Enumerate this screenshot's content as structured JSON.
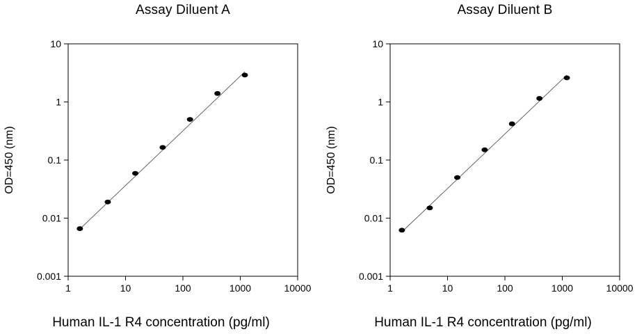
{
  "chart_data": [
    {
      "type": "scatter",
      "title": "Assay Diluent A",
      "xlabel": "Human IL-1 R4 concentration (pg/ml)",
      "ylabel": "OD=450 (nm)",
      "xscale": "log",
      "yscale": "log",
      "xlim": [
        1,
        10000
      ],
      "ylim": [
        0.001,
        10
      ],
      "xticks": [
        "1",
        "10",
        "100",
        "1000",
        "10000"
      ],
      "yticks": [
        "0.001",
        "0.01",
        "0.1",
        "1",
        "10"
      ],
      "grid": false,
      "legend": "none",
      "trendline": {
        "x": [
          1.6,
          1200
        ],
        "y": [
          0.0065,
          3.3
        ]
      },
      "series": [
        {
          "x": [
            1.6,
            4.9,
            14.8,
            44.4,
            133,
            400,
            1200
          ],
          "y": [
            0.0066,
            0.019,
            0.059,
            0.165,
            0.5,
            1.4,
            2.9
          ]
        }
      ]
    },
    {
      "type": "scatter",
      "title": "Assay Diluent B",
      "xlabel": "Human IL-1 R4 concentration (pg/ml)",
      "ylabel": "OD=450 (nm)",
      "xscale": "log",
      "yscale": "log",
      "xlim": [
        1,
        10000
      ],
      "ylim": [
        0.001,
        10
      ],
      "xticks": [
        "1",
        "10",
        "100",
        "1000",
        "10000"
      ],
      "yticks": [
        "0.001",
        "0.01",
        "0.1",
        "1",
        "10"
      ],
      "grid": false,
      "legend": "none",
      "trendline": {
        "x": [
          1.6,
          1200
        ],
        "y": [
          0.0058,
          2.9
        ]
      },
      "series": [
        {
          "x": [
            1.6,
            4.9,
            14.8,
            44.4,
            133,
            400,
            1200
          ],
          "y": [
            0.0062,
            0.015,
            0.05,
            0.15,
            0.42,
            1.15,
            2.6
          ]
        }
      ]
    }
  ]
}
